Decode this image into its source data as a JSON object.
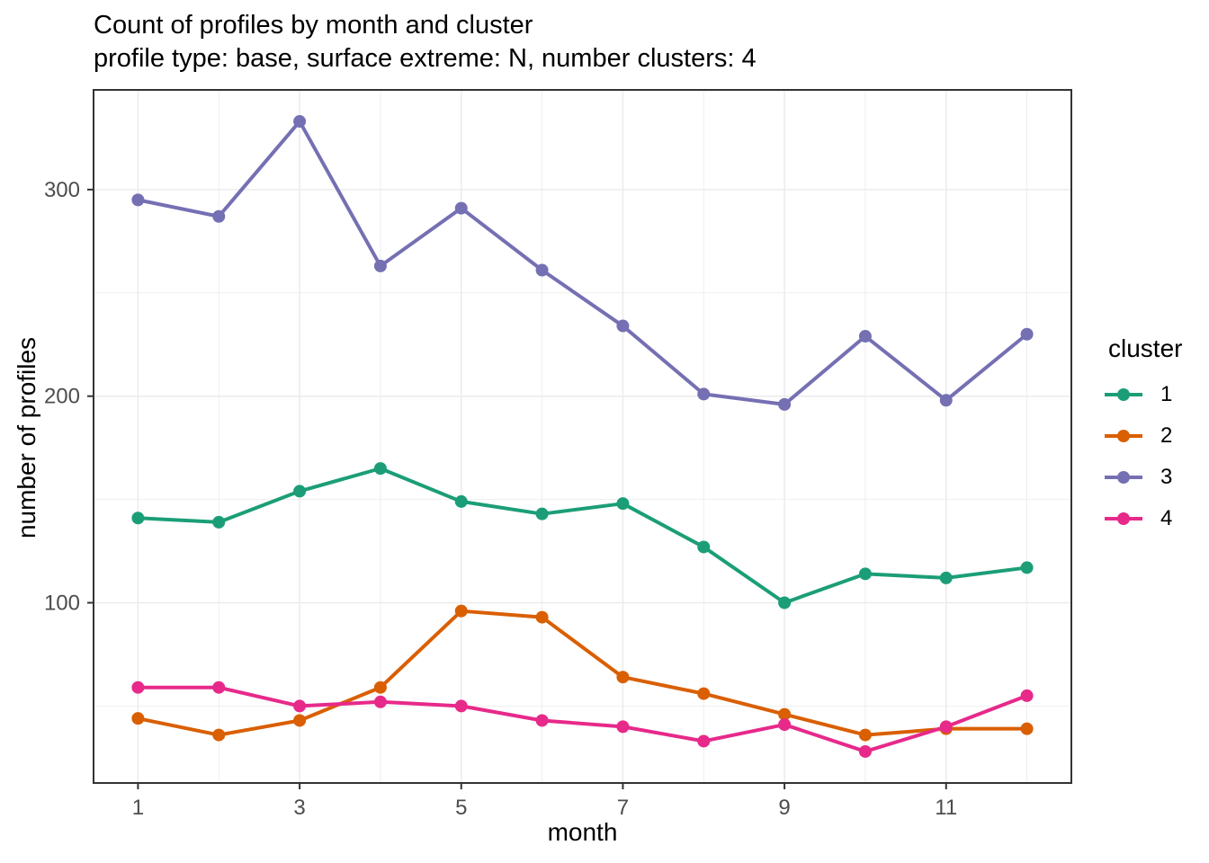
{
  "chart_data": {
    "type": "line",
    "title": "Count of profiles by month and cluster",
    "subtitle": "profile type: base, surface extreme: N, number clusters: 4",
    "xlabel": "month",
    "ylabel": "number of profiles",
    "x": [
      1,
      2,
      3,
      4,
      5,
      6,
      7,
      8,
      9,
      10,
      11,
      12
    ],
    "series": [
      {
        "name": "1",
        "color": "#1B9E77",
        "values": [
          141,
          139,
          154,
          165,
          149,
          143,
          148,
          127,
          100,
          114,
          112,
          117
        ]
      },
      {
        "name": "2",
        "color": "#D95F02",
        "values": [
          44,
          36,
          43,
          59,
          96,
          93,
          64,
          56,
          46,
          36,
          39,
          39
        ]
      },
      {
        "name": "3",
        "color": "#7570B3",
        "values": [
          295,
          287,
          333,
          263,
          291,
          261,
          234,
          201,
          196,
          229,
          198,
          230
        ]
      },
      {
        "name": "4",
        "color": "#E7298A",
        "values": [
          59,
          59,
          50,
          52,
          50,
          43,
          40,
          33,
          41,
          28,
          40,
          55
        ]
      }
    ],
    "x_ticks": [
      1,
      3,
      5,
      7,
      9,
      11
    ],
    "x_minor_ticks": [
      2,
      4,
      6,
      8,
      10,
      12
    ],
    "y_ticks": [
      100,
      200,
      300
    ],
    "y_minor_ticks": [
      50,
      150,
      250
    ],
    "xlim": [
      0.45,
      12.55
    ],
    "ylim": [
      12.75,
      348.25
    ],
    "grid": true,
    "legend": {
      "title": "cluster",
      "position": "right",
      "entries": [
        "1",
        "2",
        "3",
        "4"
      ]
    }
  },
  "style_colors": {
    "background": "#FFFFFF",
    "grid": "#EBEBEB",
    "panel_border": "#333333",
    "tick_mark": "#333333",
    "tick_label": "#4D4D4D",
    "text": "#000000"
  }
}
